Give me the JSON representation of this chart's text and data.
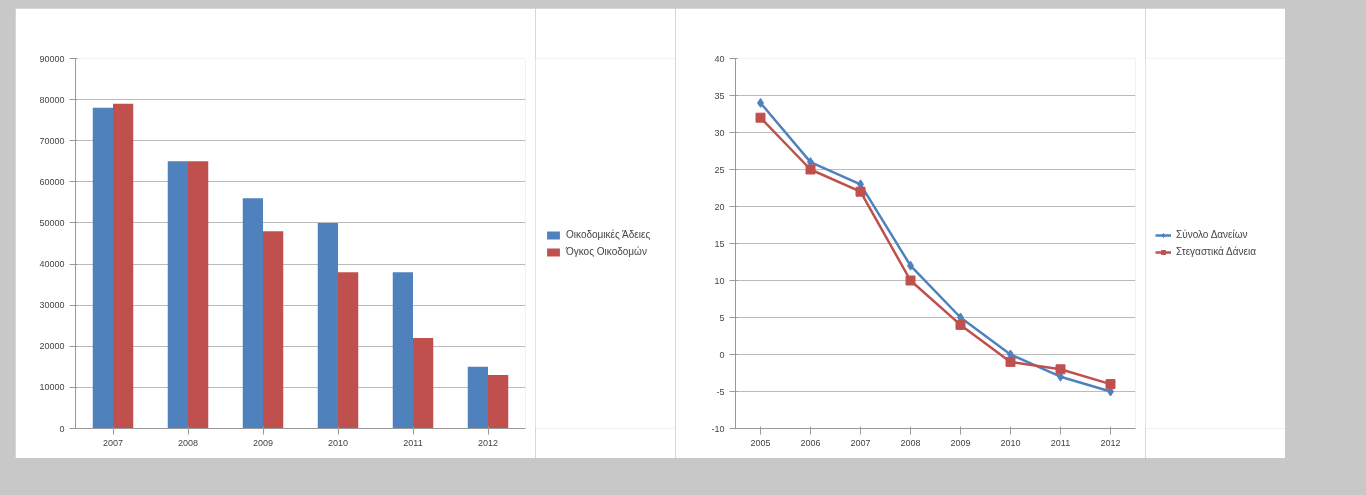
{
  "chart_data": [
    {
      "type": "bar",
      "categories": [
        "2007",
        "2008",
        "2009",
        "2010",
        "2011",
        "2012"
      ],
      "series": [
        {
          "name": "Οικοδομικές Άδειες",
          "color": "#4f81bd",
          "values": [
            78000,
            65000,
            56000,
            50000,
            38000,
            15000
          ]
        },
        {
          "name": "Όγκος Οικοδομών",
          "color": "#c0504d",
          "values": [
            79000,
            65000,
            48000,
            38000,
            22000,
            13000
          ]
        }
      ],
      "ylim": [
        0,
        90000
      ],
      "yticks": [
        0,
        10000,
        20000,
        30000,
        40000,
        50000,
        60000,
        70000,
        80000,
        90000
      ],
      "grid": "y",
      "legend": "right"
    },
    {
      "type": "line",
      "categories": [
        "2005",
        "2006",
        "2007",
        "2008",
        "2009",
        "2010",
        "2011",
        "2012"
      ],
      "series": [
        {
          "name": "Σύνολο Δανείων",
          "color": "#4f81bd",
          "marker": "diamond",
          "values": [
            34,
            26,
            23,
            12,
            5,
            0,
            -3,
            -5
          ]
        },
        {
          "name": "Στεγαστικά Δάνεια",
          "color": "#c0504d",
          "marker": "square",
          "values": [
            32,
            25,
            22,
            10,
            4,
            -1,
            -2,
            -4
          ]
        }
      ],
      "ylim": [
        -10,
        40
      ],
      "yticks": [
        -10,
        -5,
        0,
        5,
        10,
        15,
        20,
        25,
        30,
        35,
        40
      ],
      "grid": "y",
      "legend": "right"
    }
  ]
}
